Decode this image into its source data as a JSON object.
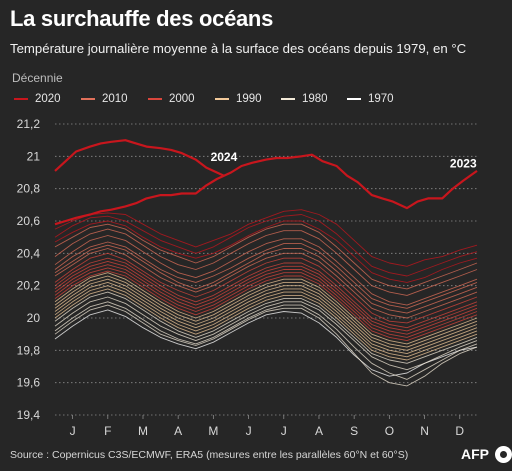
{
  "title": "La surchauffe des océans",
  "subtitle": "Température journalière moyenne à la surface des océans depuis 1979, en °C",
  "source": "Source : Copernicus C3S/ECMWF, ERA5 (mesures entre les parallèles 60°N et 60°S)",
  "logo_text": "AFP",
  "legend": {
    "title": "Décennie",
    "items": [
      {
        "label": "2020",
        "color": "#c8161d"
      },
      {
        "label": "2010",
        "color": "#e0705a"
      },
      {
        "label": "2000",
        "color": "#d9463c"
      },
      {
        "label": "1990",
        "color": "#f2c99a"
      },
      {
        "label": "1980",
        "color": "#f3ead8"
      },
      {
        "label": "1970",
        "color": "#ffffff"
      }
    ]
  },
  "chart_data": {
    "type": "line",
    "title": "La surchauffe des océans",
    "subtitle": "Température journalière moyenne à la surface des océans depuis 1979, en °C",
    "xlabel": "",
    "ylabel": "",
    "x_ticks": [
      "J",
      "F",
      "M",
      "A",
      "M",
      "J",
      "J",
      "A",
      "S",
      "O",
      "N",
      "D"
    ],
    "y_ticks": [
      "21,2",
      "21",
      "20,8",
      "20,6",
      "20,4",
      "20,2",
      "20",
      "19,8",
      "19,6",
      "19,4"
    ],
    "ylim": [
      19.4,
      21.2
    ],
    "xlim": [
      1,
      12.99
    ],
    "grid": "horizontal dotted",
    "legend_placement": "top-left",
    "annotations": [
      {
        "text": "2024",
        "x": 5.8,
        "y": 20.97
      },
      {
        "text": "2023",
        "x": 12.6,
        "y": 20.93
      }
    ],
    "highlight_series": [
      {
        "name": "2024",
        "decade": "2020",
        "color": "#c8161d",
        "x": [
          1.0,
          1.3,
          1.6,
          2.0,
          2.3,
          2.6,
          3.0,
          3.3,
          3.6,
          4.0,
          4.3,
          4.6,
          5.0,
          5.3,
          5.6,
          5.8
        ],
        "values": [
          20.91,
          20.97,
          21.03,
          21.06,
          21.08,
          21.09,
          21.1,
          21.08,
          21.06,
          21.05,
          21.04,
          21.02,
          20.98,
          20.93,
          20.9,
          20.88
        ]
      },
      {
        "name": "2023",
        "decade": "2020",
        "color": "#c8161d",
        "x": [
          1.0,
          1.3,
          1.6,
          2.0,
          2.3,
          2.6,
          3.0,
          3.3,
          3.6,
          4.0,
          4.3,
          4.6,
          5.0,
          5.3,
          5.6,
          6.0,
          6.3,
          6.6,
          7.0,
          7.3,
          7.6,
          8.0,
          8.3,
          8.6,
          9.0,
          9.3,
          9.6,
          10.0,
          10.3,
          10.6,
          11.0,
          11.3,
          11.6,
          12.0,
          12.3,
          12.6,
          12.99
        ],
        "values": [
          20.58,
          20.6,
          20.62,
          20.64,
          20.66,
          20.67,
          20.69,
          20.71,
          20.74,
          20.76,
          20.76,
          20.77,
          20.77,
          20.82,
          20.86,
          20.9,
          20.94,
          20.96,
          20.98,
          20.99,
          20.99,
          21.0,
          21.01,
          20.97,
          20.94,
          20.88,
          20.84,
          20.76,
          20.74,
          20.72,
          20.68,
          20.72,
          20.74,
          20.74,
          20.8,
          20.85,
          20.91
        ]
      }
    ],
    "background_series_x": [
      1.0,
      1.5,
      2.0,
      2.5,
      3.0,
      3.5,
      4.0,
      4.5,
      5.0,
      5.5,
      6.0,
      6.5,
      7.0,
      7.5,
      8.0,
      8.5,
      9.0,
      9.5,
      10.0,
      10.5,
      11.0,
      11.5,
      12.0,
      12.5,
      12.99
    ],
    "background_series": [
      {
        "decade": "2020",
        "values": [
          20.55,
          20.6,
          20.64,
          20.65,
          20.64,
          20.58,
          20.52,
          20.48,
          20.44,
          20.48,
          20.52,
          20.58,
          20.62,
          20.66,
          20.67,
          20.64,
          20.58,
          20.48,
          20.38,
          20.34,
          20.32,
          20.36,
          20.38,
          20.42,
          20.45
        ]
      },
      {
        "decade": "2020",
        "values": [
          20.5,
          20.57,
          20.62,
          20.63,
          20.6,
          20.54,
          20.48,
          20.44,
          20.4,
          20.44,
          20.5,
          20.56,
          20.6,
          20.63,
          20.64,
          20.6,
          20.52,
          20.42,
          20.32,
          20.28,
          20.26,
          20.3,
          20.34,
          20.38,
          20.41
        ]
      },
      {
        "decade": "2020",
        "values": [
          20.47,
          20.53,
          20.58,
          20.6,
          20.57,
          20.5,
          20.44,
          20.4,
          20.37,
          20.4,
          20.45,
          20.51,
          20.56,
          20.6,
          20.6,
          20.55,
          20.48,
          20.38,
          20.28,
          20.24,
          20.22,
          20.25,
          20.3,
          20.34,
          20.37
        ]
      },
      {
        "decade": "2010",
        "values": [
          20.44,
          20.5,
          20.56,
          20.58,
          20.55,
          20.48,
          20.42,
          20.38,
          20.34,
          20.38,
          20.44,
          20.5,
          20.55,
          20.58,
          20.58,
          20.53,
          20.44,
          20.34,
          20.24,
          20.2,
          20.18,
          20.22,
          20.26,
          20.3,
          20.34
        ]
      },
      {
        "decade": "2010",
        "values": [
          20.38,
          20.46,
          20.52,
          20.55,
          20.52,
          20.45,
          20.38,
          20.33,
          20.3,
          20.34,
          20.4,
          20.46,
          20.51,
          20.54,
          20.54,
          20.49,
          20.4,
          20.3,
          20.2,
          20.16,
          20.14,
          20.18,
          20.22,
          20.26,
          20.3
        ]
      },
      {
        "decade": "2010",
        "values": [
          20.33,
          20.41,
          20.48,
          20.51,
          20.48,
          20.41,
          20.34,
          20.28,
          20.25,
          20.29,
          20.35,
          20.41,
          20.46,
          20.49,
          20.49,
          20.44,
          20.35,
          20.25,
          20.15,
          20.1,
          20.08,
          20.12,
          20.16,
          20.2,
          20.24
        ]
      },
      {
        "decade": "2010",
        "values": [
          20.3,
          20.38,
          20.44,
          20.47,
          20.44,
          20.37,
          20.3,
          20.25,
          20.22,
          20.26,
          20.31,
          20.37,
          20.42,
          20.46,
          20.46,
          20.41,
          20.32,
          20.22,
          20.12,
          20.08,
          20.06,
          20.1,
          20.14,
          20.18,
          20.22
        ]
      },
      {
        "decade": "2010",
        "values": [
          20.28,
          20.35,
          20.42,
          20.45,
          20.42,
          20.35,
          20.28,
          20.22,
          20.18,
          20.22,
          20.28,
          20.34,
          20.4,
          20.43,
          20.43,
          20.38,
          20.29,
          20.19,
          20.09,
          20.05,
          20.03,
          20.07,
          20.11,
          20.15,
          20.19
        ]
      },
      {
        "decade": "2010",
        "values": [
          20.26,
          20.33,
          20.4,
          20.43,
          20.39,
          20.32,
          20.25,
          20.2,
          20.16,
          20.2,
          20.26,
          20.32,
          20.37,
          20.4,
          20.4,
          20.35,
          20.26,
          20.16,
          20.06,
          20.02,
          20.0,
          20.04,
          20.08,
          20.12,
          20.16
        ]
      },
      {
        "decade": "2000",
        "values": [
          20.22,
          20.3,
          20.37,
          20.4,
          20.36,
          20.29,
          20.22,
          20.17,
          20.13,
          20.17,
          20.23,
          20.29,
          20.34,
          20.37,
          20.37,
          20.32,
          20.23,
          20.13,
          20.03,
          19.98,
          19.97,
          20.01,
          20.05,
          20.09,
          20.13
        ]
      },
      {
        "decade": "2000",
        "values": [
          20.2,
          20.28,
          20.34,
          20.37,
          20.34,
          20.27,
          20.2,
          20.14,
          20.1,
          20.14,
          20.2,
          20.26,
          20.31,
          20.34,
          20.34,
          20.29,
          20.2,
          20.1,
          20.0,
          19.96,
          19.94,
          19.98,
          20.02,
          20.06,
          20.1
        ]
      },
      {
        "decade": "2000",
        "values": [
          20.18,
          20.26,
          20.32,
          20.35,
          20.32,
          20.25,
          20.18,
          20.12,
          20.08,
          20.12,
          20.18,
          20.24,
          20.29,
          20.32,
          20.32,
          20.27,
          20.18,
          20.08,
          19.98,
          19.94,
          19.92,
          19.96,
          20.0,
          20.04,
          20.08
        ]
      },
      {
        "decade": "2000",
        "values": [
          20.16,
          20.24,
          20.3,
          20.33,
          20.3,
          20.23,
          20.16,
          20.1,
          20.06,
          20.1,
          20.16,
          20.22,
          20.27,
          20.3,
          20.3,
          20.25,
          20.16,
          20.06,
          19.96,
          19.92,
          19.9,
          19.94,
          19.98,
          20.02,
          20.06
        ]
      },
      {
        "decade": "2000",
        "values": [
          20.14,
          20.22,
          20.28,
          20.31,
          20.28,
          20.21,
          20.14,
          20.08,
          20.04,
          20.08,
          20.14,
          20.2,
          20.25,
          20.28,
          20.28,
          20.23,
          20.14,
          20.04,
          19.94,
          19.9,
          19.88,
          19.92,
          19.96,
          20.0,
          20.04
        ]
      },
      {
        "decade": "2000",
        "values": [
          20.12,
          20.2,
          20.26,
          20.29,
          20.26,
          20.19,
          20.12,
          20.06,
          20.02,
          20.06,
          20.12,
          20.18,
          20.23,
          20.26,
          20.26,
          20.21,
          20.12,
          20.02,
          19.92,
          19.88,
          19.86,
          19.9,
          19.94,
          19.98,
          20.02
        ]
      },
      {
        "decade": "1990",
        "values": [
          20.1,
          20.18,
          20.25,
          20.28,
          20.24,
          20.17,
          20.1,
          20.04,
          20.0,
          20.04,
          20.1,
          20.16,
          20.21,
          20.24,
          20.24,
          20.19,
          20.1,
          20.0,
          19.9,
          19.86,
          19.84,
          19.88,
          19.92,
          19.96,
          20.0
        ]
      },
      {
        "decade": "1990",
        "values": [
          20.08,
          20.16,
          20.23,
          20.26,
          20.22,
          20.15,
          20.08,
          20.02,
          19.98,
          20.02,
          20.08,
          20.14,
          20.19,
          20.22,
          20.22,
          20.17,
          20.08,
          19.98,
          19.88,
          19.84,
          19.82,
          19.86,
          19.9,
          19.94,
          19.98
        ]
      },
      {
        "decade": "1990",
        "values": [
          20.06,
          20.14,
          20.21,
          20.24,
          20.2,
          20.13,
          20.06,
          20.0,
          19.96,
          20.0,
          20.06,
          20.12,
          20.17,
          20.2,
          20.2,
          20.15,
          20.06,
          19.96,
          19.86,
          19.82,
          19.8,
          19.84,
          19.88,
          19.92,
          19.96
        ]
      },
      {
        "decade": "1990",
        "values": [
          20.04,
          20.12,
          20.19,
          20.22,
          20.18,
          20.11,
          20.04,
          19.98,
          19.94,
          19.98,
          20.04,
          20.1,
          20.15,
          20.18,
          20.18,
          20.13,
          20.04,
          19.94,
          19.84,
          19.8,
          19.78,
          19.82,
          19.86,
          19.9,
          19.94
        ]
      },
      {
        "decade": "1990",
        "values": [
          20.02,
          20.1,
          20.17,
          20.2,
          20.16,
          20.09,
          20.02,
          19.96,
          19.92,
          19.96,
          20.02,
          20.08,
          20.13,
          20.16,
          20.16,
          20.11,
          20.02,
          19.92,
          19.82,
          19.78,
          19.76,
          19.8,
          19.84,
          19.88,
          19.92
        ]
      },
      {
        "decade": "1990",
        "values": [
          20.0,
          20.08,
          20.15,
          20.18,
          20.14,
          20.07,
          20.0,
          19.94,
          19.9,
          19.94,
          20.0,
          20.06,
          20.11,
          20.14,
          20.14,
          20.09,
          20.0,
          19.9,
          19.8,
          19.76,
          19.74,
          19.78,
          19.82,
          19.86,
          19.9
        ]
      },
      {
        "decade": "1980",
        "values": [
          19.98,
          20.06,
          20.13,
          20.16,
          20.12,
          20.05,
          19.98,
          19.92,
          19.88,
          19.92,
          19.98,
          20.04,
          20.09,
          20.12,
          20.12,
          20.07,
          19.98,
          19.88,
          19.78,
          19.74,
          19.72,
          19.76,
          19.8,
          19.84,
          19.88
        ]
      },
      {
        "decade": "1980",
        "values": [
          19.95,
          20.03,
          20.1,
          20.13,
          20.09,
          20.02,
          19.95,
          19.9,
          19.86,
          19.9,
          19.96,
          20.02,
          20.07,
          20.1,
          20.1,
          20.05,
          19.96,
          19.86,
          19.76,
          19.71,
          19.68,
          19.72,
          19.77,
          19.82,
          19.86
        ]
      },
      {
        "decade": "1980",
        "values": [
          19.92,
          20.0,
          20.07,
          20.1,
          20.06,
          19.99,
          19.92,
          19.87,
          19.84,
          19.88,
          19.94,
          20.0,
          20.05,
          20.08,
          20.08,
          20.02,
          19.93,
          19.82,
          19.72,
          19.66,
          19.62,
          19.68,
          19.74,
          19.8,
          19.84
        ]
      },
      {
        "decade": "1980",
        "values": [
          19.9,
          19.98,
          20.05,
          20.08,
          20.04,
          19.97,
          19.9,
          19.86,
          19.83,
          19.87,
          19.93,
          19.99,
          20.04,
          20.06,
          20.06,
          20.0,
          19.9,
          19.78,
          19.66,
          19.6,
          19.58,
          19.64,
          19.72,
          19.78,
          19.82
        ]
      },
      {
        "decade": "1970",
        "values": [
          19.87,
          19.95,
          20.02,
          20.05,
          20.01,
          19.94,
          19.88,
          19.84,
          19.81,
          19.85,
          19.91,
          19.97,
          20.02,
          20.04,
          20.03,
          19.97,
          19.88,
          19.77,
          19.68,
          19.64,
          19.66,
          19.72,
          19.76,
          19.8,
          19.82
        ]
      }
    ]
  }
}
